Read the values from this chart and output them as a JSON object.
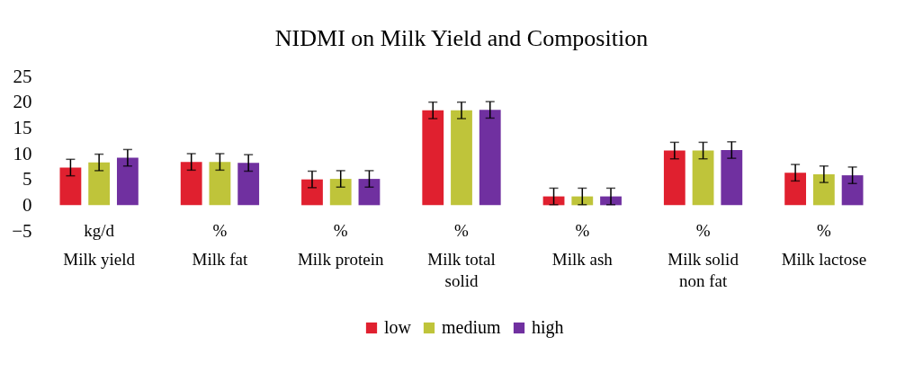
{
  "chart_data": {
    "type": "bar",
    "title": "NIDMI on Milk Yield and Composition",
    "categories": [
      "Milk yield",
      "Milk fat",
      "Milk protein",
      "Milk total solid",
      "Milk ash",
      "Milk solid non fat",
      "Milk lactose"
    ],
    "series": [
      {
        "name": "low",
        "color": "#e0202f",
        "values": [
          7.3,
          8.4,
          5.0,
          18.4,
          1.7,
          10.6,
          6.3
        ],
        "errors": [
          1.6,
          1.6,
          1.6,
          1.6,
          1.6,
          1.6,
          1.6
        ]
      },
      {
        "name": "medium",
        "color": "#bfc43a",
        "values": [
          8.3,
          8.4,
          5.1,
          18.4,
          1.7,
          10.6,
          6.0
        ],
        "errors": [
          1.6,
          1.6,
          1.6,
          1.6,
          1.6,
          1.6,
          1.6
        ]
      },
      {
        "name": "high",
        "color": "#7030a0",
        "values": [
          9.2,
          8.2,
          5.1,
          18.5,
          1.7,
          10.7,
          5.8
        ],
        "errors": [
          1.6,
          1.6,
          1.6,
          1.6,
          1.6,
          1.6,
          1.6
        ]
      }
    ],
    "annotations": [
      "kg/d",
      "%",
      "%",
      "%",
      "%",
      "%",
      "%"
    ],
    "ylim": [
      -5,
      25
    ],
    "yticks": [
      -5,
      0,
      5,
      10,
      15,
      20,
      25
    ],
    "grid": false,
    "legend": "bottom"
  }
}
